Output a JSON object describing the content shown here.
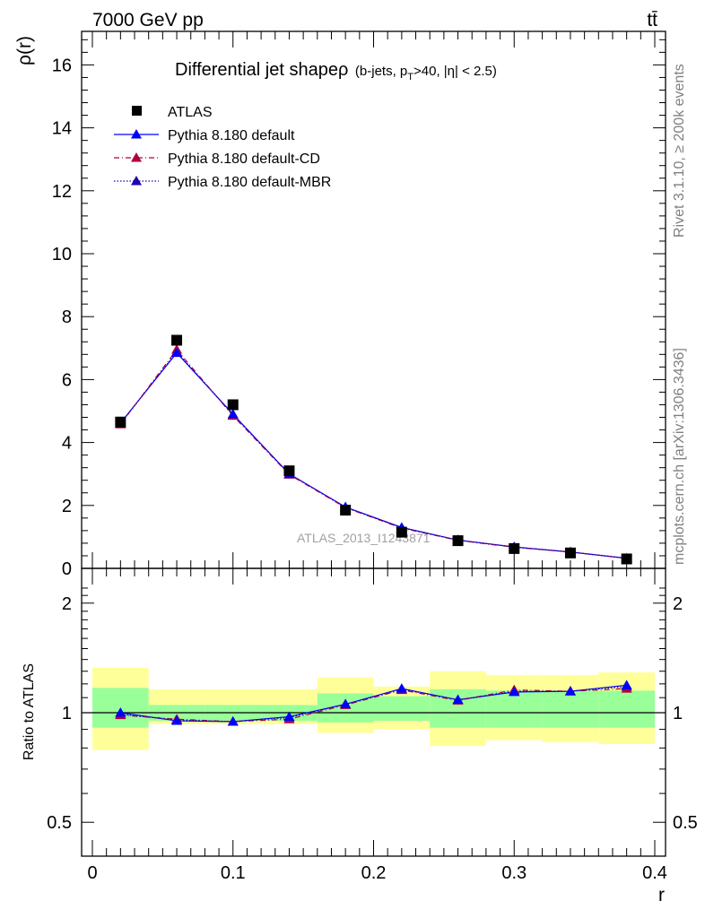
{
  "header": {
    "energy_label": "7000 GeV pp",
    "process_label": "tt̄",
    "side_label_rivet": "Rivet 3.1.10, ≥ 200k events",
    "side_label_source": "mcplots.cern.ch [arXiv:1306.3436]",
    "watermark": "ATLAS_2013_I1243871"
  },
  "colors": {
    "atlas": "#000000",
    "default": "#0000ff",
    "cd": "#b0003a",
    "mbr": "#2000b0",
    "band_outer": "#ffff99",
    "band_inner": "#99ff99"
  },
  "chart_data": [
    {
      "type": "line",
      "title": "Differential jet shape ρ",
      "title_main": "Differential jet shapeρ",
      "title_sub": "(b-jets, p",
      "title_sub_T": "T",
      "title_sub_end": ">40, |η| < 2.5)",
      "xlabel": "r",
      "ylabel": "ρ(r)",
      "xlim": [
        0,
        0.4
      ],
      "ylim": [
        0,
        17
      ],
      "yticks": [
        0,
        2,
        4,
        6,
        8,
        10,
        12,
        14,
        16
      ],
      "ytick_labels": [
        "0",
        "2",
        "4",
        "6",
        "8",
        "10",
        "12",
        "14",
        "16"
      ],
      "legend_position": "top-left",
      "x": [
        0.02,
        0.06,
        0.1,
        0.14,
        0.18,
        0.22,
        0.26,
        0.3,
        0.34,
        0.38
      ],
      "series": [
        {
          "name": "ATLAS",
          "marker": "square",
          "values": [
            4.65,
            7.25,
            5.2,
            3.1,
            1.85,
            1.15,
            0.88,
            0.63,
            0.49,
            0.3
          ]
        },
        {
          "name": "Pythia 8.180 default",
          "marker": "triangle",
          "line": "solid",
          "values": [
            4.62,
            6.85,
            4.9,
            3.0,
            1.95,
            1.3,
            0.9,
            0.68,
            0.52,
            0.32
          ]
        },
        {
          "name": "Pythia 8.180 default-CD",
          "marker": "triangle",
          "line": "dashdot",
          "values": [
            4.58,
            6.95,
            4.85,
            2.98,
            1.93,
            1.28,
            0.89,
            0.67,
            0.52,
            0.32
          ]
        },
        {
          "name": "Pythia 8.180 default-MBR",
          "marker": "triangle",
          "line": "dotted",
          "values": [
            4.6,
            6.88,
            4.88,
            3.0,
            1.94,
            1.29,
            0.9,
            0.68,
            0.52,
            0.32
          ]
        }
      ]
    },
    {
      "type": "line",
      "title": "",
      "xlabel": "r",
      "ylabel": "Ratio to ATLAS",
      "xlim": [
        0,
        0.4
      ],
      "ylim": [
        0.39,
        2.3
      ],
      "yscale": "log",
      "yticks": [
        0.5,
        1,
        2
      ],
      "ytick_labels": [
        "0.5",
        "1",
        "2"
      ],
      "xticks": [
        0,
        0.1,
        0.2,
        0.3,
        0.4
      ],
      "xtick_labels": [
        "0",
        "0.1",
        "0.2",
        "0.3",
        "0.4"
      ],
      "x": [
        0.02,
        0.06,
        0.1,
        0.14,
        0.18,
        0.22,
        0.26,
        0.3,
        0.34,
        0.38
      ],
      "bands": {
        "bin_edges": [
          0,
          0.04,
          0.08,
          0.12,
          0.16,
          0.2,
          0.24,
          0.28,
          0.32,
          0.36,
          0.4
        ],
        "outer_low": [
          0.79,
          0.93,
          0.93,
          0.93,
          0.88,
          0.9,
          0.81,
          0.84,
          0.83,
          0.82
        ],
        "outer_high": [
          1.33,
          1.16,
          1.16,
          1.16,
          1.25,
          1.18,
          1.3,
          1.27,
          1.27,
          1.29
        ],
        "inner_low": [
          0.91,
          0.95,
          0.95,
          0.95,
          0.94,
          0.95,
          0.91,
          0.91,
          0.91,
          0.91
        ],
        "inner_high": [
          1.17,
          1.05,
          1.05,
          1.05,
          1.13,
          1.11,
          1.16,
          1.15,
          1.15,
          1.15
        ]
      },
      "series": [
        {
          "name": "Pythia 8.180 default",
          "values": [
            1.0,
            0.95,
            0.945,
            0.975,
            1.055,
            1.165,
            1.085,
            1.14,
            1.145,
            1.19
          ]
        },
        {
          "name": "Pythia 8.180 default-CD",
          "values": [
            0.985,
            0.96,
            0.945,
            0.96,
            1.05,
            1.155,
            1.08,
            1.155,
            1.145,
            1.165
          ]
        },
        {
          "name": "Pythia 8.180 default-MBR",
          "values": [
            0.99,
            0.955,
            0.945,
            0.97,
            1.055,
            1.16,
            1.085,
            1.145,
            1.145,
            1.18
          ]
        }
      ]
    }
  ]
}
